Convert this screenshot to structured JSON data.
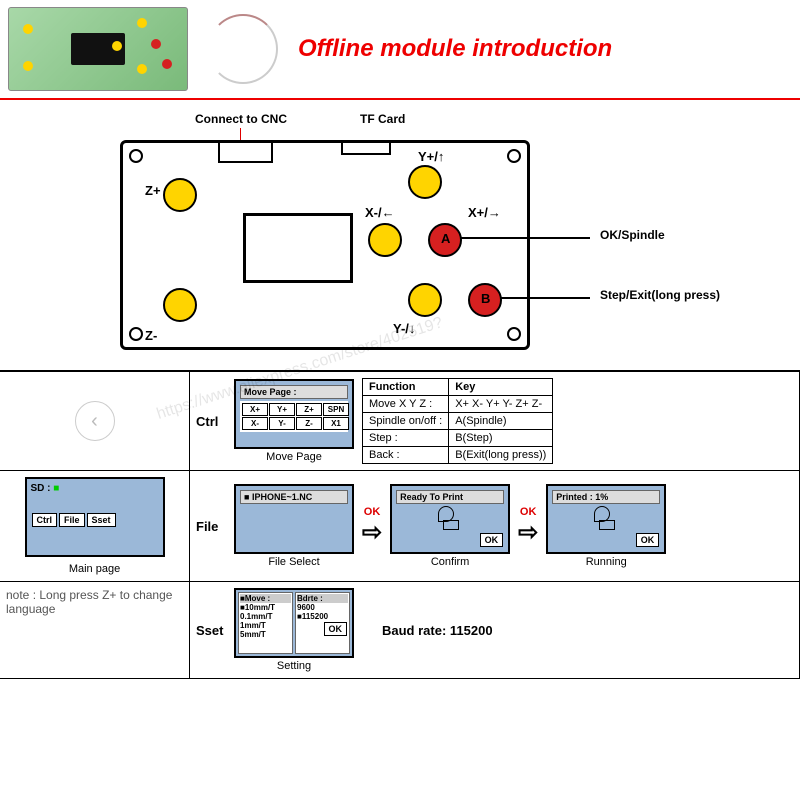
{
  "title": "Offline module introduction",
  "colors": {
    "accent": "#e00000",
    "yellow": "#ffd400",
    "red": "#d62020",
    "screen_bg": "#9bb8d8"
  },
  "watermark": "https://www.aliexpress.com/store/402519?",
  "board": {
    "connect_label": "Connect to CNC",
    "tf_label": "TF Card",
    "buttons": {
      "z_plus": "Z+",
      "z_minus": "Z-",
      "y_plus": "Y+/↑",
      "y_minus": "Y-/↓",
      "x_minus": "X-/←",
      "x_plus": "X+/→",
      "a_letter": "A",
      "b_letter": "B"
    },
    "callouts": {
      "ok": "OK/Spindle",
      "step": "Step/Exit(long press)"
    }
  },
  "func_table": {
    "headers": [
      "Function",
      "Key"
    ],
    "rows": [
      [
        "Move X Y Z :",
        "X+  X-  Y+  Y-  Z+  Z-"
      ],
      [
        "Spindle on/off :",
        "A(Spindle)"
      ],
      [
        "Step :",
        "B(Step)"
      ],
      [
        "Back :",
        "B(Exit(long press))"
      ]
    ]
  },
  "main_page": {
    "sd_label": "SD :",
    "buttons": [
      "Ctrl",
      "File",
      "Sset"
    ],
    "caption": "Main page"
  },
  "ctrl": {
    "label": "Ctrl",
    "screen_title": "Move Page :",
    "grid": [
      "X+",
      "Y+",
      "Z+",
      "SPN",
      "X-",
      "Y-",
      "Z-",
      "X1"
    ],
    "caption": "Move Page"
  },
  "file": {
    "label": "File",
    "filename": "IPHONE~1.NC",
    "caption": "File Select",
    "ok": "OK",
    "confirm": {
      "title": "Ready To Print",
      "caption": "Confirm",
      "ok": "OK"
    },
    "running": {
      "title": "Printed : 1%",
      "caption": "Running",
      "ok": "OK"
    }
  },
  "sset": {
    "label": "Sset",
    "move_col": "Move :",
    "bdrte_col": "Bdrte :",
    "moves": [
      "10mm/T",
      "0.1mm/T",
      "1mm/T",
      "5mm/T"
    ],
    "bauds": [
      "9600",
      "115200"
    ],
    "ok": "OK",
    "caption": "Setting",
    "baud_note": "Baud rate: 115200"
  },
  "note": "note : Long press Z+ to change language"
}
